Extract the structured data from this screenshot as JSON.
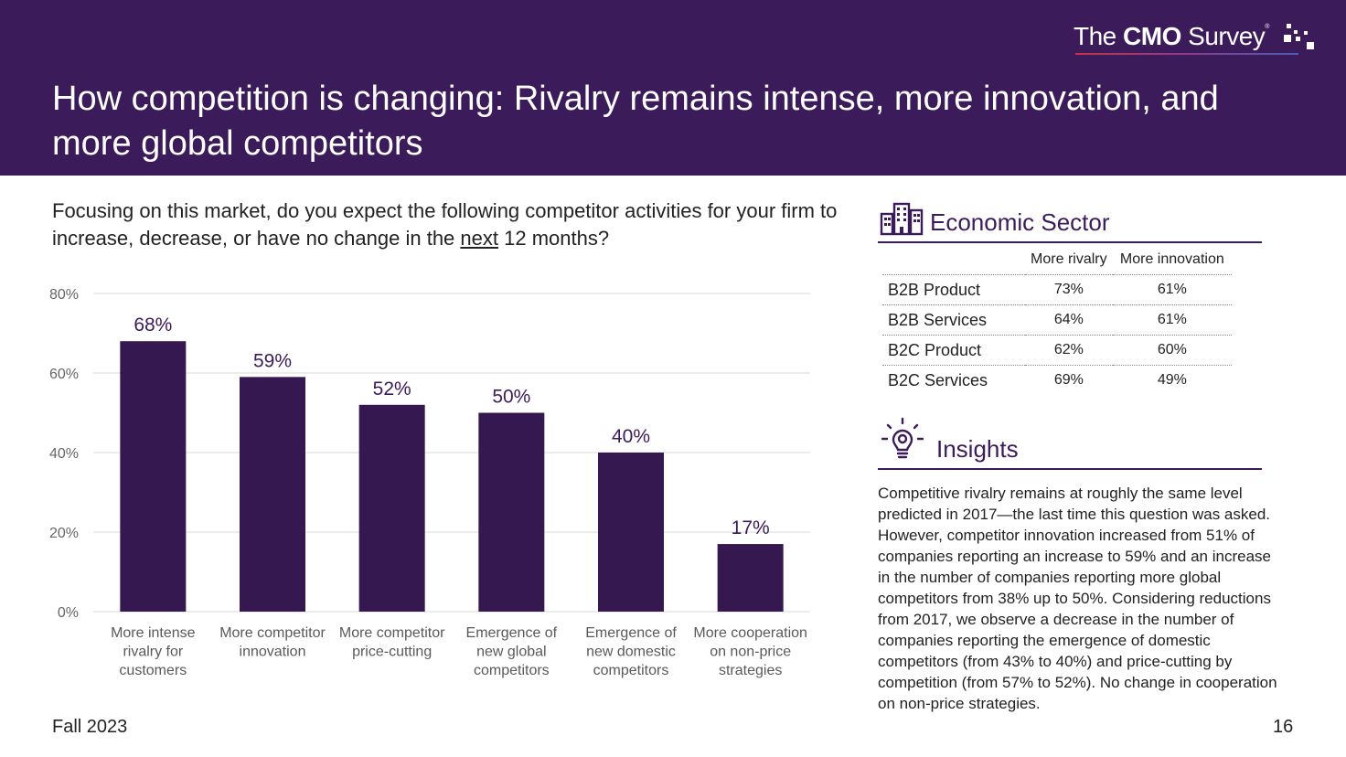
{
  "header": {
    "title": "How competition is changing: Rivalry remains intense, more innovation, and more global competitors",
    "logo": {
      "the": "The ",
      "cmo": "CMO",
      "survey": " Survey",
      "reg": "®"
    }
  },
  "colors": {
    "brand": "#3b1b5a",
    "bar": "#35184f",
    "grid": "#d9d9d9"
  },
  "question": {
    "before": "Focusing on this market, do you expect the following competitor activities for your firm to increase, decrease, or have no change in the ",
    "underlined": "next",
    "after": " 12 months?"
  },
  "chart_data": {
    "type": "bar",
    "categories": [
      "More intense rivalry for customers",
      "More competitor innovation",
      "More competitor price-cutting",
      "Emergence of new global competitors",
      "Emergence of new domestic competitors",
      "More cooperation on non-price strategies"
    ],
    "category_lines": [
      [
        "More intense",
        "rivalry for",
        "customers"
      ],
      [
        "More competitor",
        "innovation"
      ],
      [
        "More competitor",
        "price-cutting"
      ],
      [
        "Emergence of",
        "new global",
        "competitors"
      ],
      [
        "Emergence of",
        "new domestic",
        "competitors"
      ],
      [
        "More cooperation",
        "on non-price",
        "strategies"
      ]
    ],
    "values": [
      68,
      59,
      52,
      50,
      40,
      17
    ],
    "data_labels": [
      "68%",
      "59%",
      "52%",
      "50%",
      "40%",
      "17%"
    ],
    "yticks": [
      0,
      20,
      40,
      60,
      80
    ],
    "ytick_labels": [
      "0%",
      "20%",
      "40%",
      "60%",
      "80%"
    ],
    "ylim": [
      0,
      80
    ],
    "grid": true
  },
  "sector": {
    "title": "Economic Sector",
    "icon": "buildings-icon",
    "columns": [
      "More rivalry",
      "More innovation"
    ],
    "rows": [
      {
        "name": "B2B Product",
        "rivalry": "73%",
        "innovation": "61%"
      },
      {
        "name": "B2B Services",
        "rivalry": "64%",
        "innovation": "61%"
      },
      {
        "name": "B2C Product",
        "rivalry": "62%",
        "innovation": "60%"
      },
      {
        "name": "B2C Services",
        "rivalry": "69%",
        "innovation": "49%"
      }
    ]
  },
  "insights": {
    "title": "Insights",
    "icon": "lightbulb-gear-icon",
    "text": "Competitive rivalry remains at roughly the same level predicted in 2017—the last time this question was asked. However, competitor innovation increased from 51% of companies reporting an increase to 59% and an increase in the number of companies reporting more global competitors from 38% up to 50%. Considering reductions from 2017, we observe a decrease in the number of companies reporting the emergence of domestic competitors (from 43% to 40%) and price-cutting by competition (from 57% to 52%). No change in cooperation on non-price strategies."
  },
  "footer": {
    "date": "Fall 2023",
    "page": "16"
  }
}
